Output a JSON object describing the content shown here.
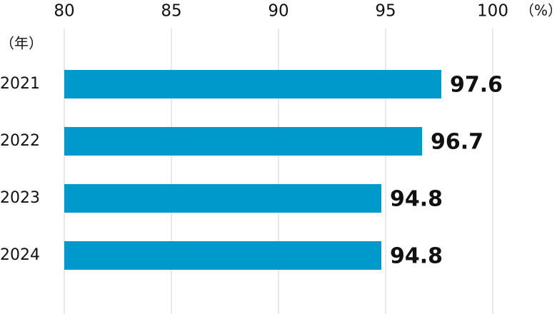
{
  "chart_data": {
    "type": "bar",
    "orientation": "horizontal",
    "xlabel": "（%）",
    "ylabel": "（年）",
    "categories": [
      "2021",
      "2022",
      "2023",
      "2024"
    ],
    "values": [
      97.6,
      96.7,
      94.8,
      94.8
    ],
    "color": "#0099cc",
    "xlim": [
      80,
      100
    ],
    "xticks": [
      80,
      85,
      90,
      95,
      100
    ],
    "grid": true
  }
}
